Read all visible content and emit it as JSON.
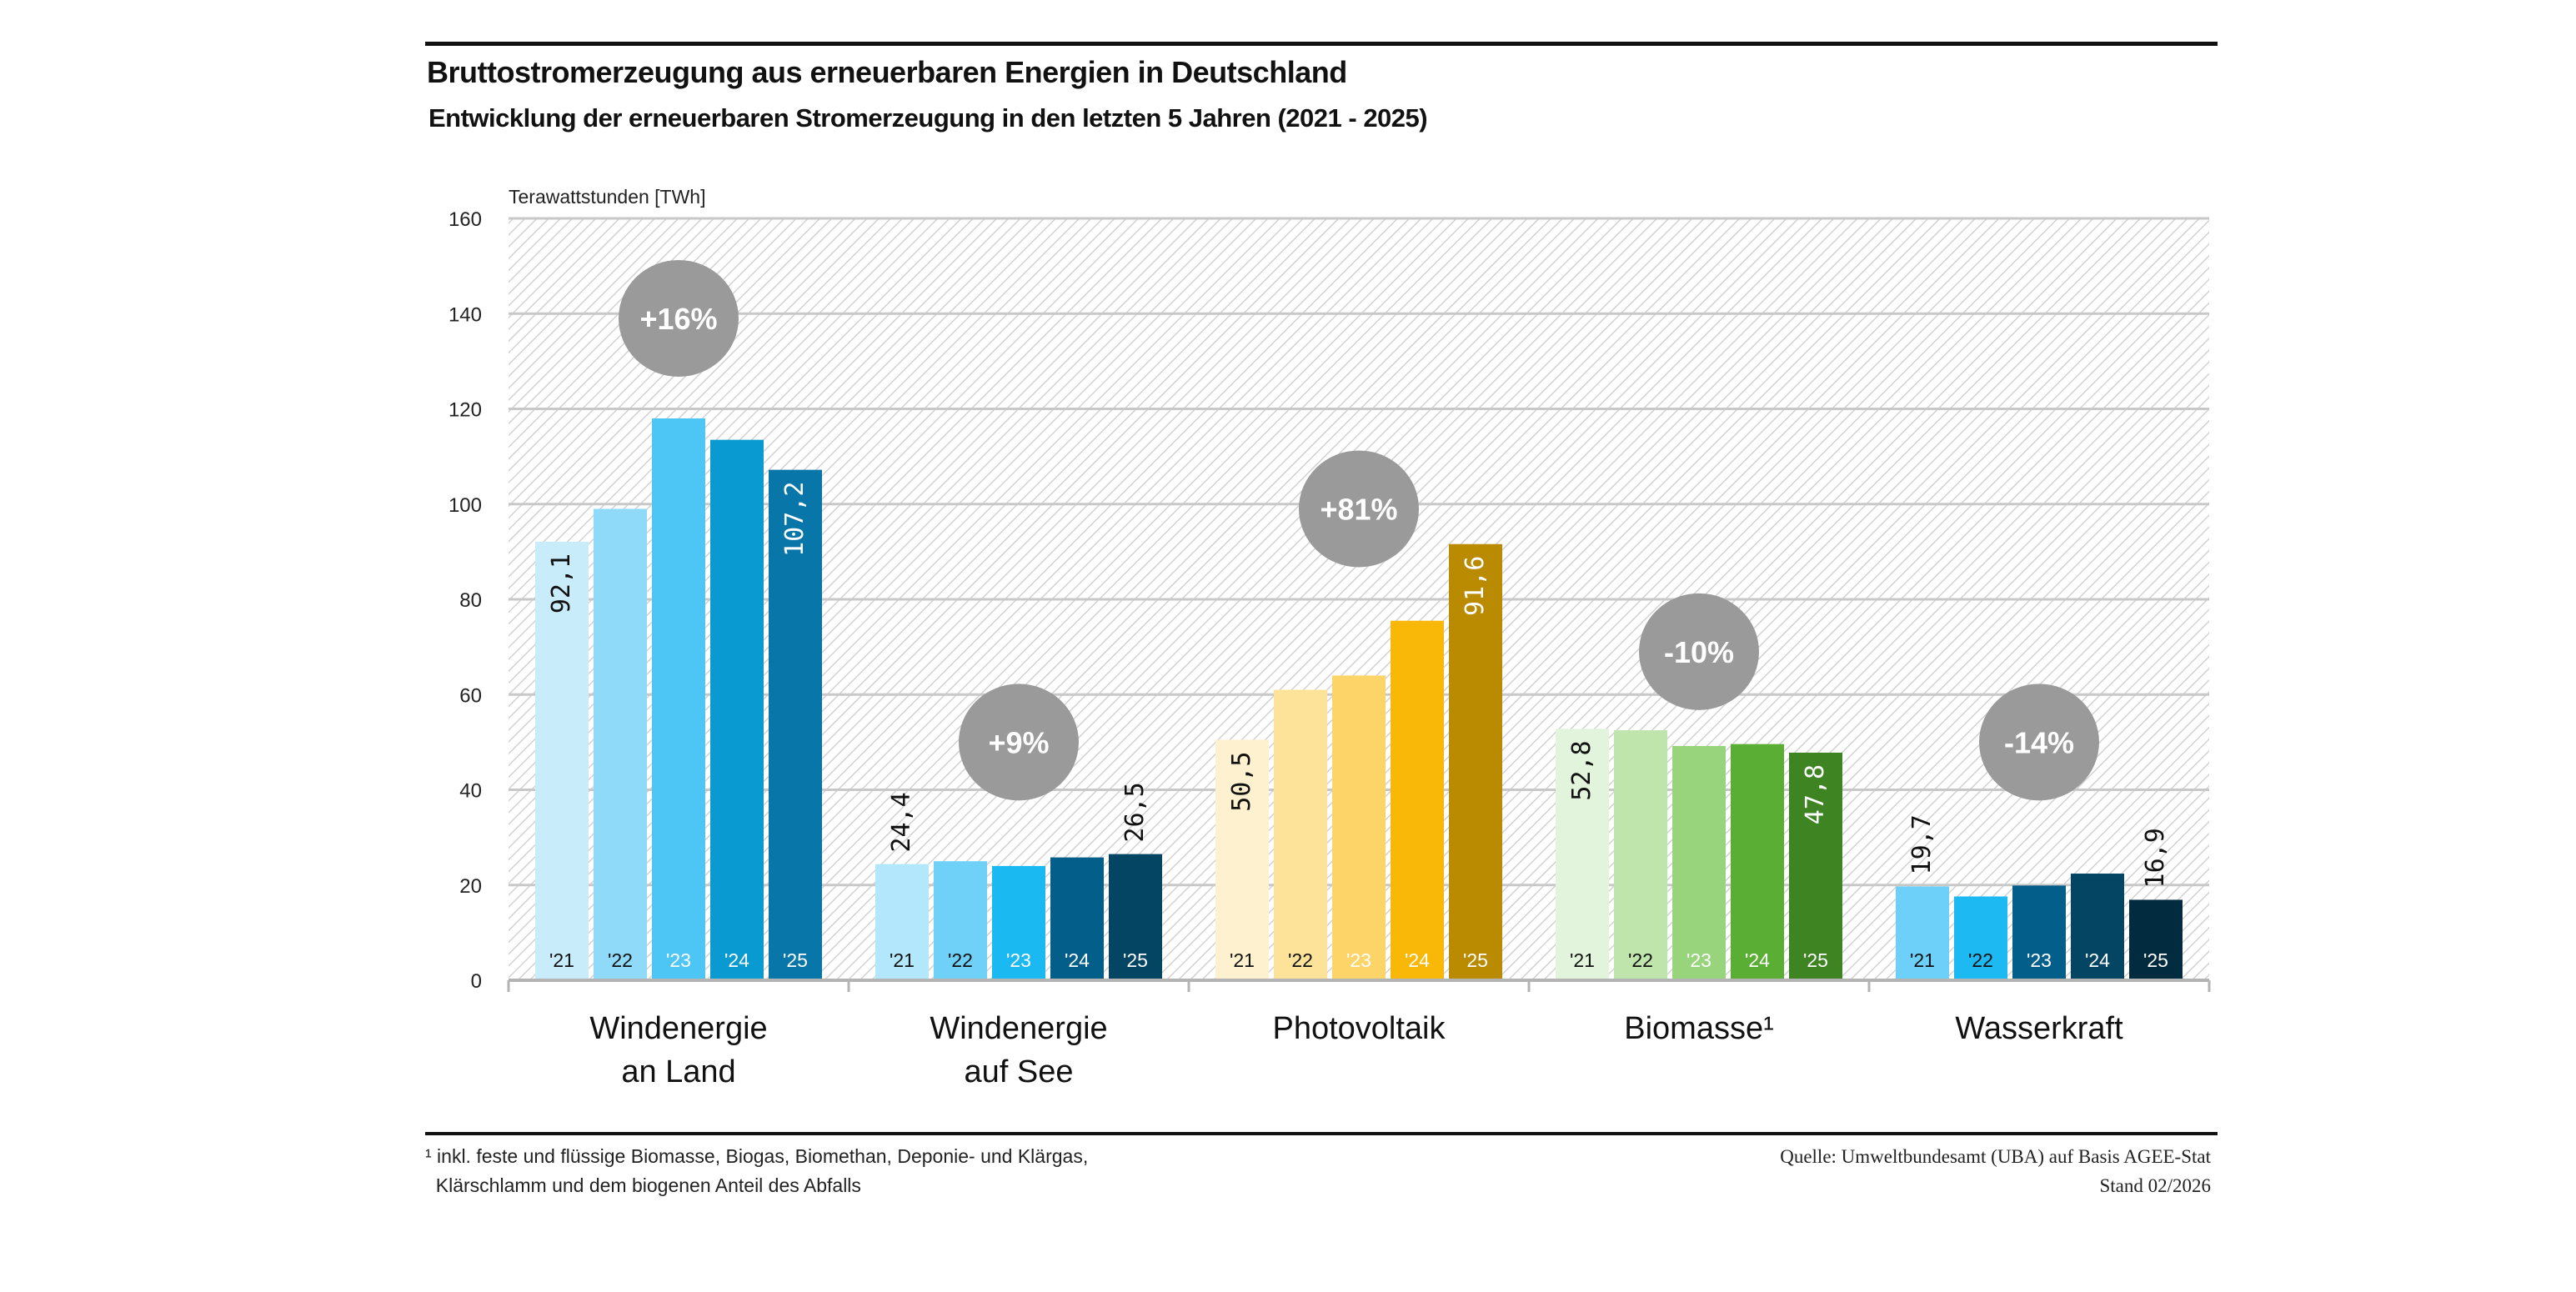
{
  "header": {
    "title": "Bruttostromerzeugung aus erneuerbaren Energien in Deutschland",
    "subtitle": "Entwicklung der erneuerbaren Stromerzeugung in den letzten 5 Jahren (2021 - 2025)"
  },
  "chart_data": {
    "type": "bar",
    "title": "Bruttostromerzeugung aus erneuerbaren Energien in Deutschland",
    "subtitle": "Entwicklung der erneuerbaren Stromerzeugung in den letzten 5 Jahren (2021 - 2025)",
    "ylabel": "Terawattstunden  [TWh]",
    "xlabel": "",
    "ylim": [
      0,
      160
    ],
    "yticks": [
      0,
      20,
      40,
      60,
      80,
      100,
      120,
      140,
      160
    ],
    "grid": true,
    "legend": "none",
    "year_labels": [
      "'21",
      "'22",
      "'23",
      "'24",
      "'25"
    ],
    "groups": [
      {
        "name": "Windenergie an Land",
        "label_lines": [
          "Windenergie",
          "an Land"
        ],
        "values": [
          92.1,
          99.0,
          118.0,
          113.5,
          107.2
        ],
        "labels": [
          "92,1",
          null,
          null,
          null,
          "107,2"
        ],
        "label_inside": true,
        "change": "+16%",
        "change_at": 139,
        "colors": [
          "#c9ecfb",
          "#8fdaf8",
          "#4ec6f5",
          "#0a9ad2",
          "#0876a8"
        ],
        "year_text_colors": [
          "#111",
          "#111",
          "#ffffff",
          "#ffffff",
          "#ffffff"
        ]
      },
      {
        "name": "Windenergie auf See",
        "label_lines": [
          "Windenergie",
          "auf See"
        ],
        "values": [
          24.4,
          25.0,
          24.0,
          25.8,
          26.5
        ],
        "labels": [
          "24,4",
          null,
          null,
          null,
          "26,5"
        ],
        "label_inside": false,
        "change": "+9%",
        "change_at": 50,
        "colors": [
          "#b3e7fb",
          "#6fd1f7",
          "#1bb9f2",
          "#035f8a",
          "#034563"
        ],
        "year_text_colors": [
          "#111",
          "#111",
          "#ffffff",
          "#ffffff",
          "#ffffff"
        ]
      },
      {
        "name": "Photovoltaik",
        "label_lines": [
          "Photovoltaik"
        ],
        "values": [
          50.5,
          61.0,
          64.0,
          75.5,
          91.6
        ],
        "labels": [
          "50,5",
          null,
          null,
          null,
          "91,6"
        ],
        "label_inside": true,
        "change": "+81%",
        "change_at": 99,
        "colors": [
          "#fdf1cf",
          "#fde39a",
          "#fcd468",
          "#f9b808",
          "#ba8b00"
        ],
        "year_text_colors": [
          "#111",
          "#111",
          "#ffffff",
          "#ffffff",
          "#ffffff"
        ]
      },
      {
        "name": "Biomasse¹",
        "label_lines": [
          "Biomasse¹"
        ],
        "values": [
          52.8,
          52.5,
          49.2,
          49.6,
          47.8
        ],
        "labels": [
          "52,8",
          null,
          null,
          null,
          "47,8"
        ],
        "label_inside": true,
        "change": "-10%",
        "change_at": 69,
        "colors": [
          "#e3f4dc",
          "#bfe5ad",
          "#98d47c",
          "#5aae33",
          "#3e8423"
        ],
        "year_text_colors": [
          "#111",
          "#111",
          "#ffffff",
          "#ffffff",
          "#ffffff"
        ]
      },
      {
        "name": "Wasserkraft",
        "label_lines": [
          "Wasserkraft"
        ],
        "values": [
          19.7,
          17.6,
          19.9,
          22.4,
          16.9
        ],
        "labels": [
          "19,7",
          null,
          null,
          null,
          "16,9"
        ],
        "label_inside": false,
        "change": "-14%",
        "change_at": 50,
        "colors": [
          "#6dd0f8",
          "#1cb9f2",
          "#035f8a",
          "#034563",
          "#022b3f"
        ],
        "year_text_colors": [
          "#111",
          "#111",
          "#ffffff",
          "#ffffff",
          "#ffffff"
        ]
      }
    ]
  },
  "footer": {
    "note_line1": "¹ inkl. feste und flüssige Biomasse, Biogas, Biomethan, Deponie- und Klärgas,",
    "note_line2": "  Klärschlamm und dem biogenen Anteil des Abfalls",
    "source": "Quelle: Umweltbundesamt (UBA) auf Basis AGEE-Stat",
    "date": "Stand 02/2026"
  },
  "colors": {
    "grid": "#c8c8c8",
    "hatch": "#d6d6d6",
    "bubble": "#9a9a9a",
    "rule": "#111111"
  }
}
